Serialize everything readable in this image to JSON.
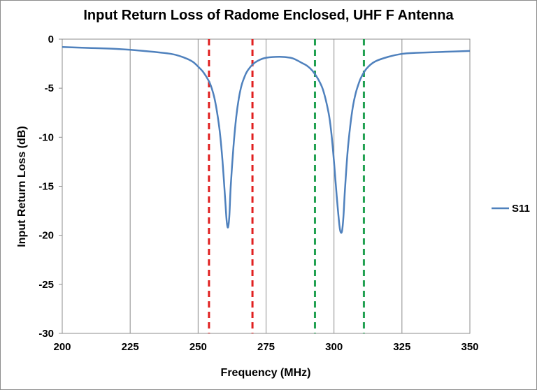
{
  "chart_data": {
    "type": "line",
    "title": "Input Return Loss of Radome Enclosed, UHF F Antenna",
    "xlabel": "Frequency (MHz)",
    "ylabel": "Input Return Loss (dB)",
    "xlim": [
      200,
      350
    ],
    "ylim": [
      -30,
      0
    ],
    "xticks": [
      200,
      225,
      250,
      275,
      300,
      325,
      350
    ],
    "yticks": [
      0,
      -5,
      -10,
      -15,
      -20,
      -25,
      -30
    ],
    "x_tick_labels": [
      "200",
      "225",
      "250",
      "275",
      "300",
      "325",
      "350"
    ],
    "y_tick_labels": [
      "0",
      "-5",
      "-10",
      "-15",
      "-20",
      "-25",
      "-30"
    ],
    "grid": "vertical",
    "legend": "right",
    "series": [
      {
        "name": "S11",
        "color": "#4f81bd",
        "x": [
          200,
          210,
          220,
          230,
          240,
          245,
          248,
          250,
          252,
          254,
          255,
          256,
          257,
          258,
          259,
          260,
          260.5,
          261,
          261.5,
          262,
          263,
          264,
          265,
          266,
          267,
          268,
          270,
          272,
          275,
          280,
          284,
          286,
          288,
          290,
          292,
          294,
          296,
          298,
          299,
          300,
          301,
          302,
          302.5,
          303,
          303.5,
          304,
          305,
          306,
          307,
          308,
          309,
          310,
          312,
          315,
          320,
          325,
          330,
          340,
          350
        ],
        "values": [
          -0.8,
          -0.9,
          -1.0,
          -1.2,
          -1.5,
          -1.9,
          -2.3,
          -2.8,
          -3.4,
          -4.3,
          -5.0,
          -6.0,
          -7.5,
          -9.5,
          -12.5,
          -16.5,
          -18.5,
          -19.2,
          -18.0,
          -15.0,
          -11.0,
          -8.0,
          -6.0,
          -4.7,
          -3.9,
          -3.3,
          -2.6,
          -2.2,
          -1.9,
          -1.8,
          -1.9,
          -2.1,
          -2.4,
          -2.7,
          -3.2,
          -4.0,
          -5.2,
          -7.5,
          -9.5,
          -12.5,
          -16.0,
          -19.0,
          -19.7,
          -19.5,
          -18.0,
          -15.5,
          -11.5,
          -8.8,
          -6.8,
          -5.5,
          -4.6,
          -3.9,
          -3.0,
          -2.3,
          -1.8,
          -1.5,
          -1.4,
          -1.3,
          -1.2
        ]
      }
    ],
    "markers": [
      {
        "x": 254,
        "color": "#e02020"
      },
      {
        "x": 270,
        "color": "#e02020"
      },
      {
        "x": 293,
        "color": "#20a050"
      },
      {
        "x": 311,
        "color": "#20a050"
      }
    ]
  }
}
